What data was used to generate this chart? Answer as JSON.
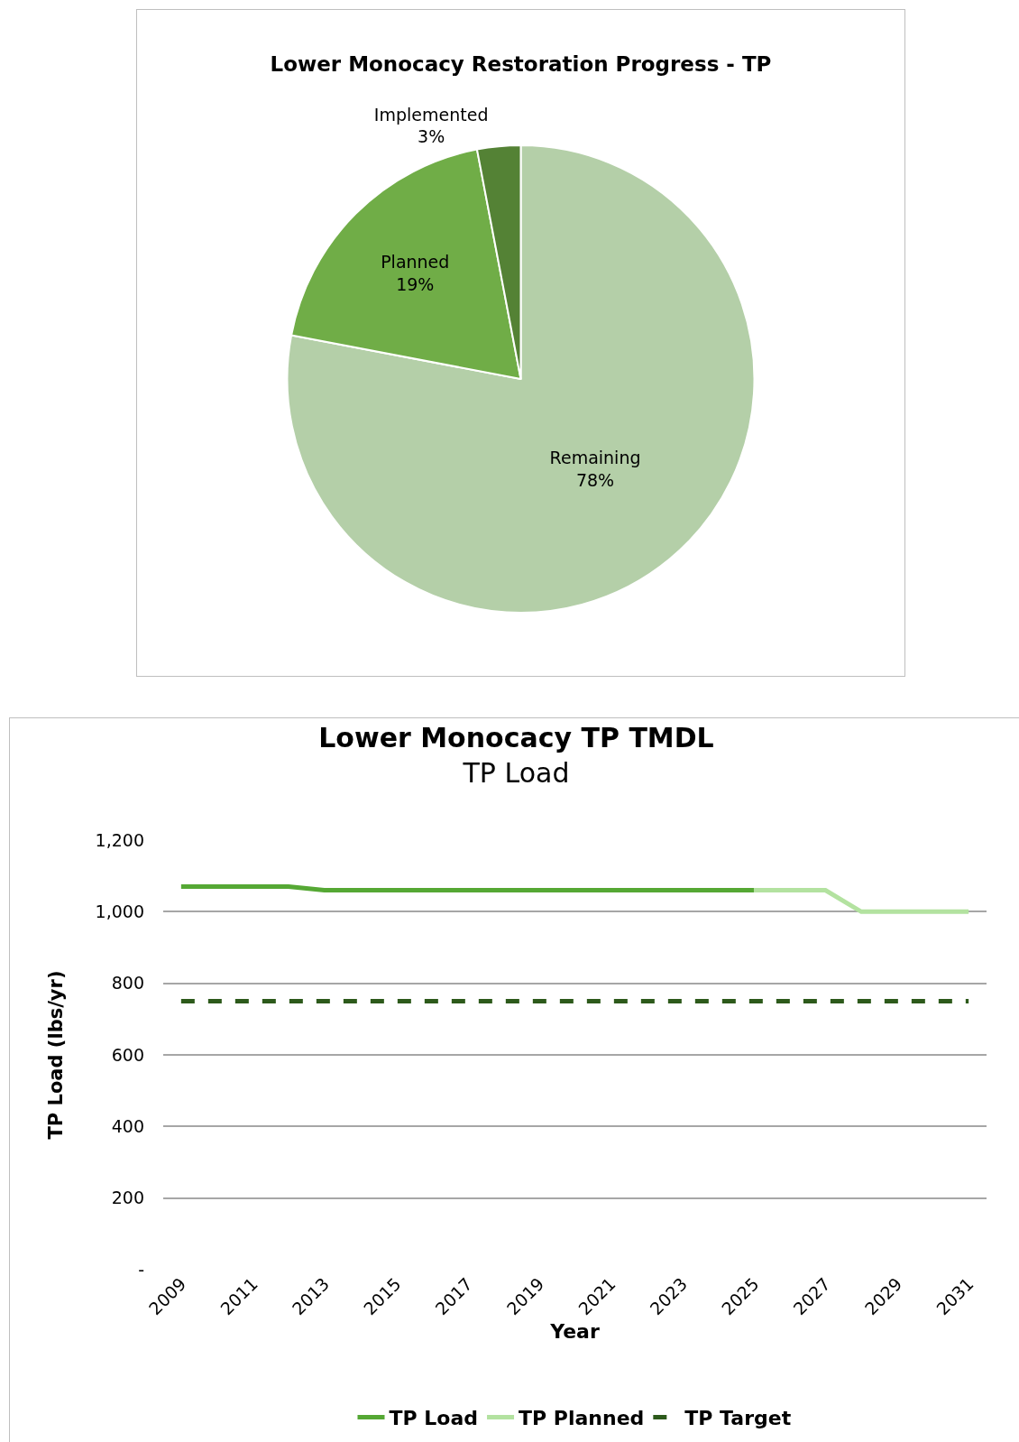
{
  "chart_data": [
    {
      "type": "pie",
      "title": "Lower Monocacy Restoration Progress - TP",
      "categories": [
        "Remaining",
        "Planned",
        "Implemented"
      ],
      "values": [
        78,
        19,
        3
      ],
      "value_labels": [
        "78%",
        "19%",
        "3%"
      ],
      "colors": [
        "#b4cfa8",
        "#70ad47",
        "#548235"
      ],
      "legend": false
    },
    {
      "type": "line",
      "title": "Lower Monocacy TP TMDL",
      "subtitle": "TP Load",
      "xlabel": "Year",
      "ylabel": "TP Load (lbs/yr)",
      "series": [
        {
          "name": "TP Load",
          "color": "#55a834",
          "x": [
            2009,
            2010,
            2011,
            2012,
            2013,
            2014,
            2015,
            2016,
            2017,
            2018,
            2019,
            2020,
            2021,
            2022,
            2023,
            2024,
            2025
          ],
          "values": [
            1070,
            1070,
            1070,
            1070,
            1060,
            1060,
            1060,
            1060,
            1060,
            1060,
            1060,
            1060,
            1060,
            1060,
            1060,
            1060,
            1060
          ]
        },
        {
          "name": "TP Planned",
          "color": "#b3e2a0",
          "x": [
            2025,
            2026,
            2027,
            2028,
            2029,
            2030,
            2031
          ],
          "values": [
            1060,
            1060,
            1060,
            1000,
            1000,
            1000,
            1000
          ]
        },
        {
          "name": "TP Target",
          "color": "#2d5a1b",
          "line_style": "dashed",
          "x": [
            2009,
            2010,
            2011,
            2012,
            2013,
            2014,
            2015,
            2016,
            2017,
            2018,
            2019,
            2020,
            2021,
            2022,
            2023,
            2024,
            2025,
            2026,
            2027,
            2028,
            2029,
            2030,
            2031
          ],
          "values": [
            750,
            750,
            750,
            750,
            750,
            750,
            750,
            750,
            750,
            750,
            750,
            750,
            750,
            750,
            750,
            750,
            750,
            750,
            750,
            750,
            750,
            750,
            750
          ]
        }
      ],
      "xlim": [
        2008.5,
        2031.5
      ],
      "xticks": [
        2009,
        2011,
        2013,
        2015,
        2017,
        2019,
        2021,
        2023,
        2025,
        2027,
        2029,
        2031
      ],
      "ylim": [
        0,
        1200
      ],
      "yticks": [
        {
          "value": 0,
          "label": "-"
        },
        200,
        400,
        600,
        800,
        {
          "value": 1000,
          "label": "1,000"
        },
        {
          "value": 1200,
          "label": "1,200"
        }
      ],
      "grid": "y",
      "legend": "bottom",
      "marker": "none",
      "line_style": "solid"
    }
  ]
}
